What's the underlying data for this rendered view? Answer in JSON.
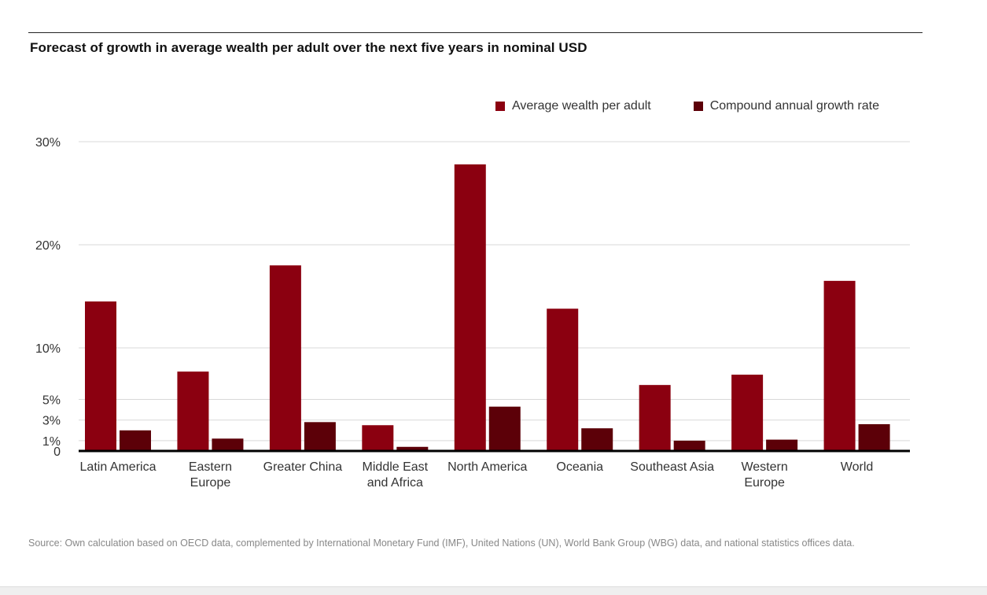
{
  "title": "Forecast of growth in average wealth per adult over the next five years in nominal USD",
  "source": "Source: Own calculation based on OECD data, complemented by International Monetary Fund (IMF), United Nations (UN), World Bank Group (WBG) data, and national statistics offices data.",
  "colors": {
    "wealth": "#8b0010",
    "cagr": "#5c0008",
    "grid": "#d9d9d9",
    "axis": "#000000"
  },
  "chart_data": {
    "type": "bar",
    "title": "Forecast of growth in average wealth per adult over the next five years in nominal USD",
    "categories": [
      [
        "Latin America"
      ],
      [
        "Eastern",
        "Europe"
      ],
      [
        "Greater China"
      ],
      [
        "Middle East",
        "and Africa"
      ],
      [
        "North America"
      ],
      [
        "Oceania"
      ],
      [
        "Southeast Asia"
      ],
      [
        "Western",
        "Europe"
      ],
      [
        "World"
      ]
    ],
    "series": [
      {
        "name": "Average wealth per adult",
        "values": [
          14.5,
          7.7,
          18.0,
          2.5,
          27.8,
          13.8,
          6.4,
          7.4,
          16.5
        ]
      },
      {
        "name": "Compound annual growth rate",
        "values": [
          2.0,
          1.2,
          2.8,
          0.4,
          4.3,
          2.2,
          1.0,
          1.1,
          2.6
        ]
      }
    ],
    "yticks": [
      0,
      1,
      3,
      5,
      10,
      20,
      30
    ],
    "ytick_labels": [
      "0",
      "1%",
      "3%",
      "5%",
      "10%",
      "20%",
      "30%"
    ],
    "ylim": [
      0,
      30
    ],
    "grid": true,
    "legend": "top-right"
  }
}
